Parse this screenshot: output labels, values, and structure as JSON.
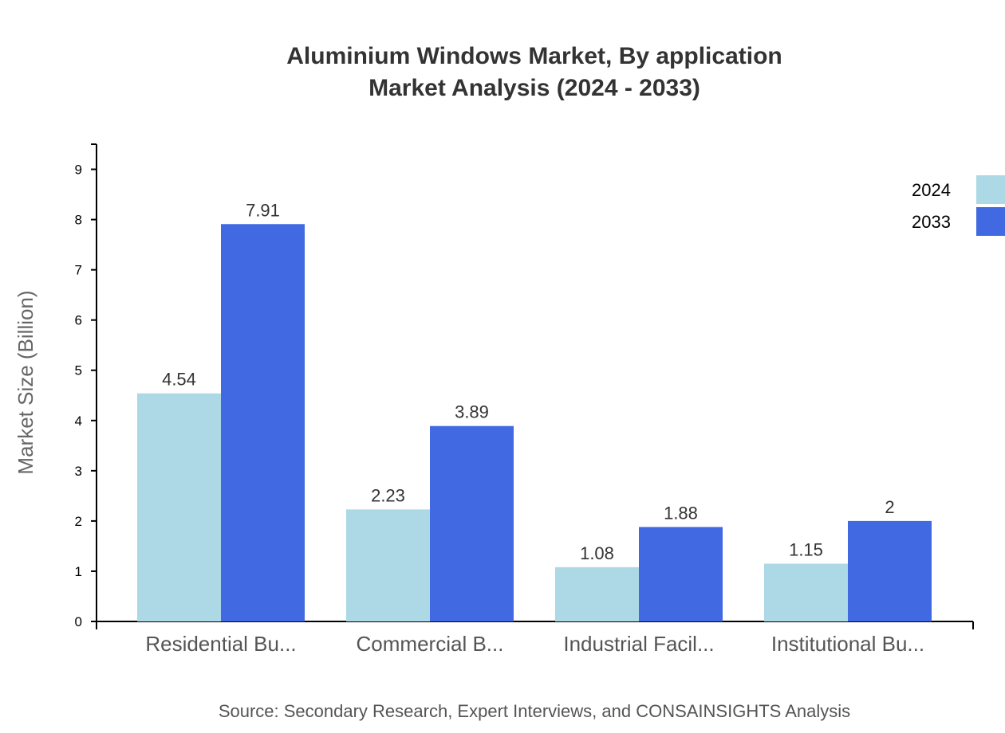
{
  "chart_data": {
    "type": "bar",
    "title": "Aluminium Windows Market, By application",
    "subtitle": "Market Analysis (2024 - 2033)",
    "xlabel": "",
    "ylabel": "Market Size (Billion)",
    "ylim": [
      0,
      9.5
    ],
    "yticks": [
      0,
      1,
      2,
      3,
      4,
      5,
      6,
      7,
      8,
      9
    ],
    "categories": [
      "Residential Bu...",
      "Commercial B...",
      "Industrial Facil...",
      "Institutional Bu..."
    ],
    "series": [
      {
        "name": "2024",
        "values": [
          4.54,
          2.23,
          1.08,
          1.15
        ],
        "color": "#add8e6"
      },
      {
        "name": "2033",
        "values": [
          7.91,
          3.89,
          1.88,
          2
        ],
        "color": "#4169e1"
      }
    ],
    "grid": false,
    "legend": "top-right",
    "source": "Source: Secondary Research, Expert Interviews, and CONSAINSIGHTS Analysis"
  }
}
